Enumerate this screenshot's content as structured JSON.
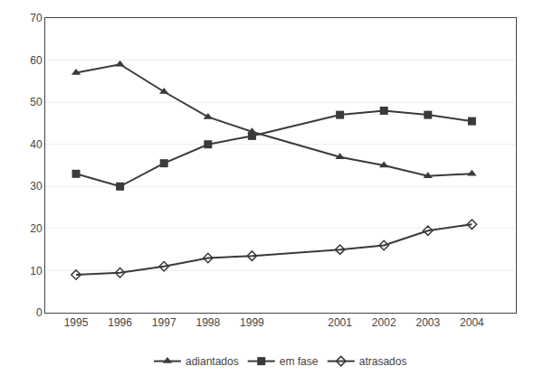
{
  "chart_data": {
    "type": "line",
    "x": [
      1995,
      1996,
      1997,
      1998,
      1999,
      2001,
      2002,
      2003,
      2004
    ],
    "series": [
      {
        "name": "adiantados",
        "color": "#3a3a3a",
        "marker": "triangle",
        "values": [
          57,
          59,
          52.5,
          46.5,
          43,
          37,
          35,
          32.5,
          33
        ]
      },
      {
        "name": "em fase",
        "color": "#3a3a3a",
        "marker": "square",
        "values": [
          33,
          30,
          35.5,
          40,
          42,
          47,
          48,
          47,
          45.5
        ]
      },
      {
        "name": "atrasados",
        "color": "#3a3a3a",
        "marker": "diamond-open",
        "values": [
          9,
          9.5,
          11,
          13,
          13.5,
          15,
          16,
          19.5,
          21
        ]
      }
    ],
    "xlim": [
      1994.3,
      2005.0
    ],
    "xticks": [
      1995,
      1996,
      1997,
      1998,
      1999,
      2001,
      2002,
      2003,
      2004
    ],
    "ylim": [
      0,
      70
    ],
    "yticks": [
      0,
      10,
      20,
      30,
      40,
      50,
      60,
      70
    ],
    "grid": "y",
    "legend": "bottom"
  }
}
